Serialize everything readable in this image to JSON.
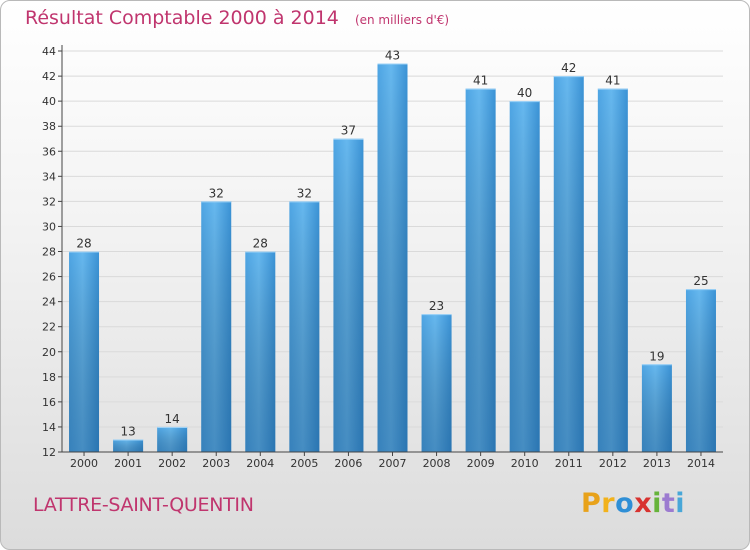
{
  "header": {
    "title": "Résultat Comptable 2000 à 2014",
    "subtitle": "(en milliers d'€)"
  },
  "footer": {
    "commune": "LATTRE-SAINT-QUENTIN",
    "brand_letters": [
      "P",
      "r",
      "o",
      "x",
      "i",
      "t",
      "i"
    ],
    "brand_colors": [
      "#e8a21a",
      "#f2b21c",
      "#2f8fd6",
      "#d8322f",
      "#66b33a",
      "#9c7bd0",
      "#48a7d8"
    ]
  },
  "colors": {
    "bar_light": "#62b6ee",
    "bar_dark": "#2a7cbd",
    "text": "#c0356e",
    "axis": "#333333"
  },
  "chart_data": {
    "type": "bar",
    "title": "Résultat Comptable 2000 à 2014",
    "subtitle": "(en milliers d'€)",
    "xlabel": "",
    "ylabel": "",
    "categories": [
      "2000",
      "2001",
      "2002",
      "2003",
      "2004",
      "2005",
      "2006",
      "2007",
      "2008",
      "2009",
      "2010",
      "2011",
      "2012",
      "2013",
      "2014"
    ],
    "values": [
      28,
      13,
      14,
      32,
      28,
      32,
      37,
      43,
      23,
      41,
      40,
      42,
      41,
      19,
      25
    ],
    "ylim": [
      12,
      44
    ],
    "yticks": [
      12,
      14,
      16,
      18,
      20,
      22,
      24,
      26,
      28,
      30,
      32,
      34,
      36,
      38,
      40,
      42,
      44
    ],
    "grid": true,
    "legend": "none"
  }
}
